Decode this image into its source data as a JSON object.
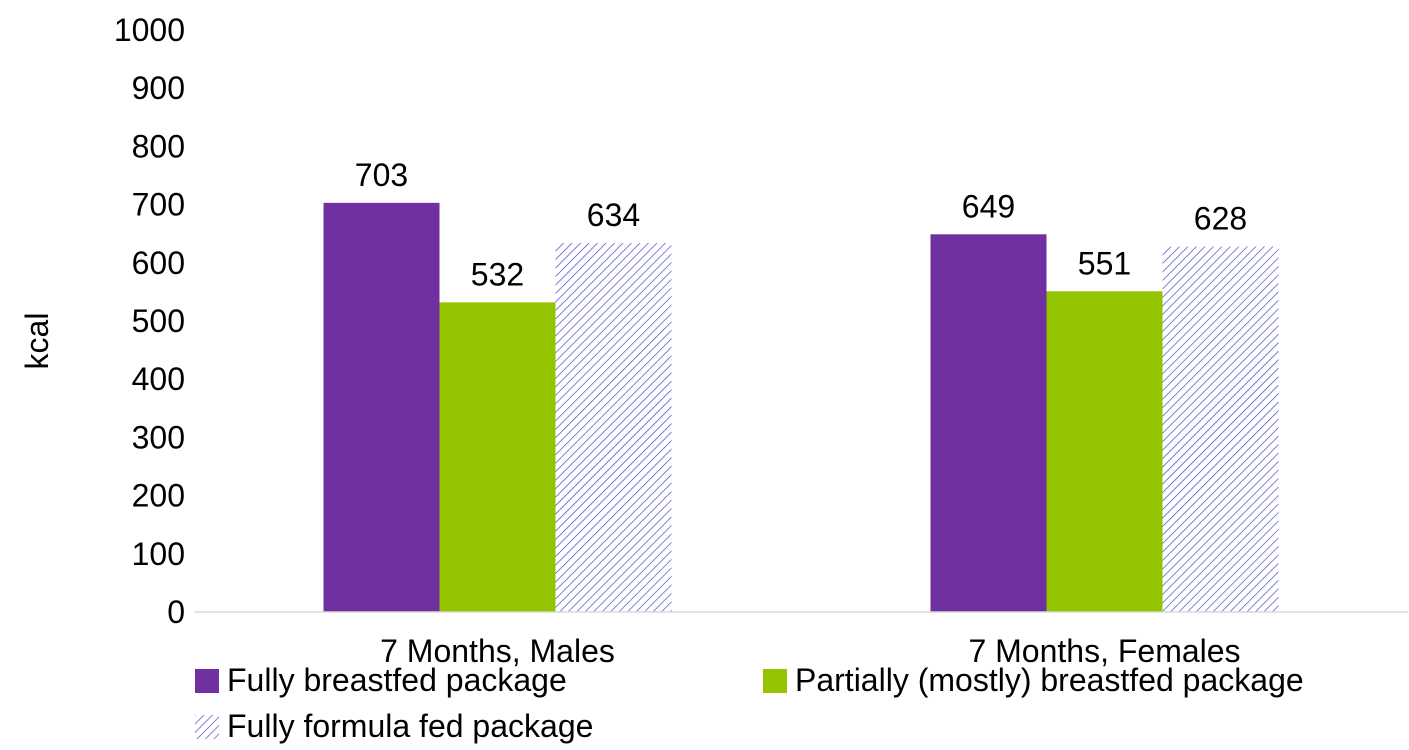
{
  "chart_data": {
    "type": "bar",
    "title": "",
    "xlabel": "",
    "ylabel": "kcal",
    "ylim": [
      0,
      1000
    ],
    "yticks": [
      0,
      100,
      200,
      300,
      400,
      500,
      600,
      700,
      800,
      900,
      1000
    ],
    "categories": [
      "7 Months, Males",
      "7 Months, Females"
    ],
    "series": [
      {
        "name": "Fully breastfed package",
        "values": [
          703,
          649
        ],
        "color": "#7030A0",
        "fill": "solid"
      },
      {
        "name": "Partially (mostly) breastfed package",
        "values": [
          532,
          551
        ],
        "color": "#92C500",
        "fill": "solid"
      },
      {
        "name": "Fully formula fed package",
        "values": [
          634,
          628
        ],
        "color": "#3B3BC4",
        "fill": "diagonal-hatch"
      }
    ],
    "data_labels": true,
    "grid": false,
    "legend_position": "bottom"
  }
}
